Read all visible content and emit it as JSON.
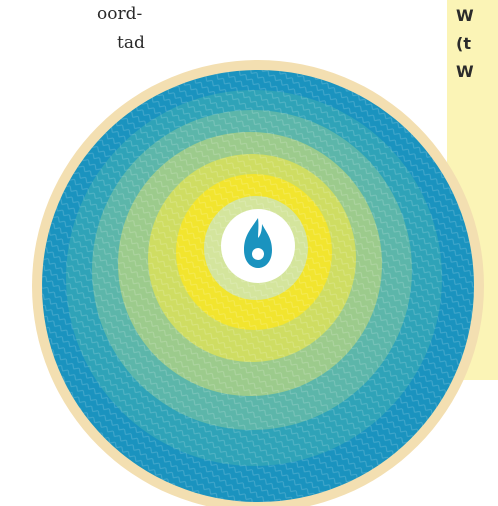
{
  "body_text": {
    "lines": [
      "oord-",
      "tad"
    ]
  },
  "sidebar": {
    "lines": [
      "W",
      "(t",
      "W"
    ]
  }
}
